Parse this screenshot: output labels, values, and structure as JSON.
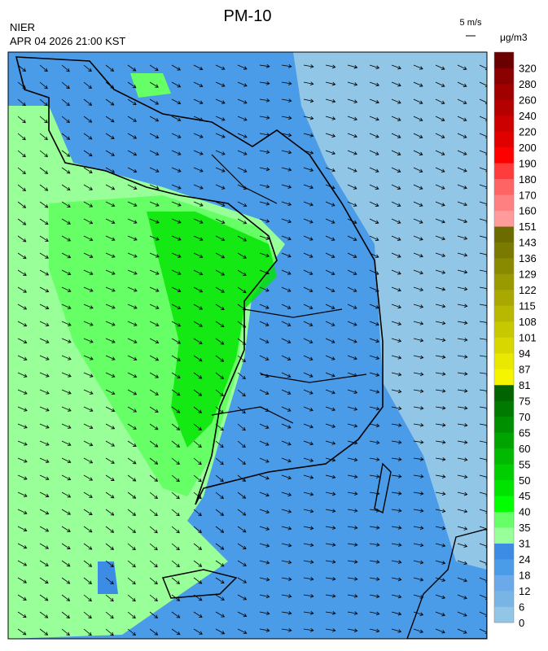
{
  "title": "PM-10",
  "source": "NIER",
  "timestamp": "APR 04 2026 21:00 KST",
  "wind_scale": "5 m/s",
  "colorbar": {
    "unit": "μg/m3",
    "ticks": [
      0,
      6,
      12,
      18,
      24,
      31,
      35,
      40,
      45,
      50,
      55,
      60,
      65,
      70,
      75,
      81,
      87,
      94,
      101,
      108,
      115,
      122,
      129,
      136,
      143,
      151,
      160,
      170,
      180,
      190,
      200,
      220,
      240,
      260,
      280,
      320
    ],
    "colors": [
      "#92c6e6",
      "#78b4e4",
      "#6aa9ea",
      "#4a9be8",
      "#3c8ce6",
      "#99ff99",
      "#66ff66",
      "#00ff00",
      "#00e300",
      "#00ce00",
      "#00b900",
      "#00a400",
      "#008f00",
      "#007a00",
      "#006400",
      "#f5f500",
      "#e8e800",
      "#d8d800",
      "#c8c800",
      "#b8b800",
      "#a8a800",
      "#999900",
      "#8a8a00",
      "#7a7a00",
      "#6b6b00",
      "#ff9b9b",
      "#ff8080",
      "#ff6464",
      "#ff3c3c",
      "#ff0000",
      "#e00000",
      "#cc0000",
      "#b40000",
      "#a00000",
      "#8b0000",
      "#6b0000"
    ]
  }
}
